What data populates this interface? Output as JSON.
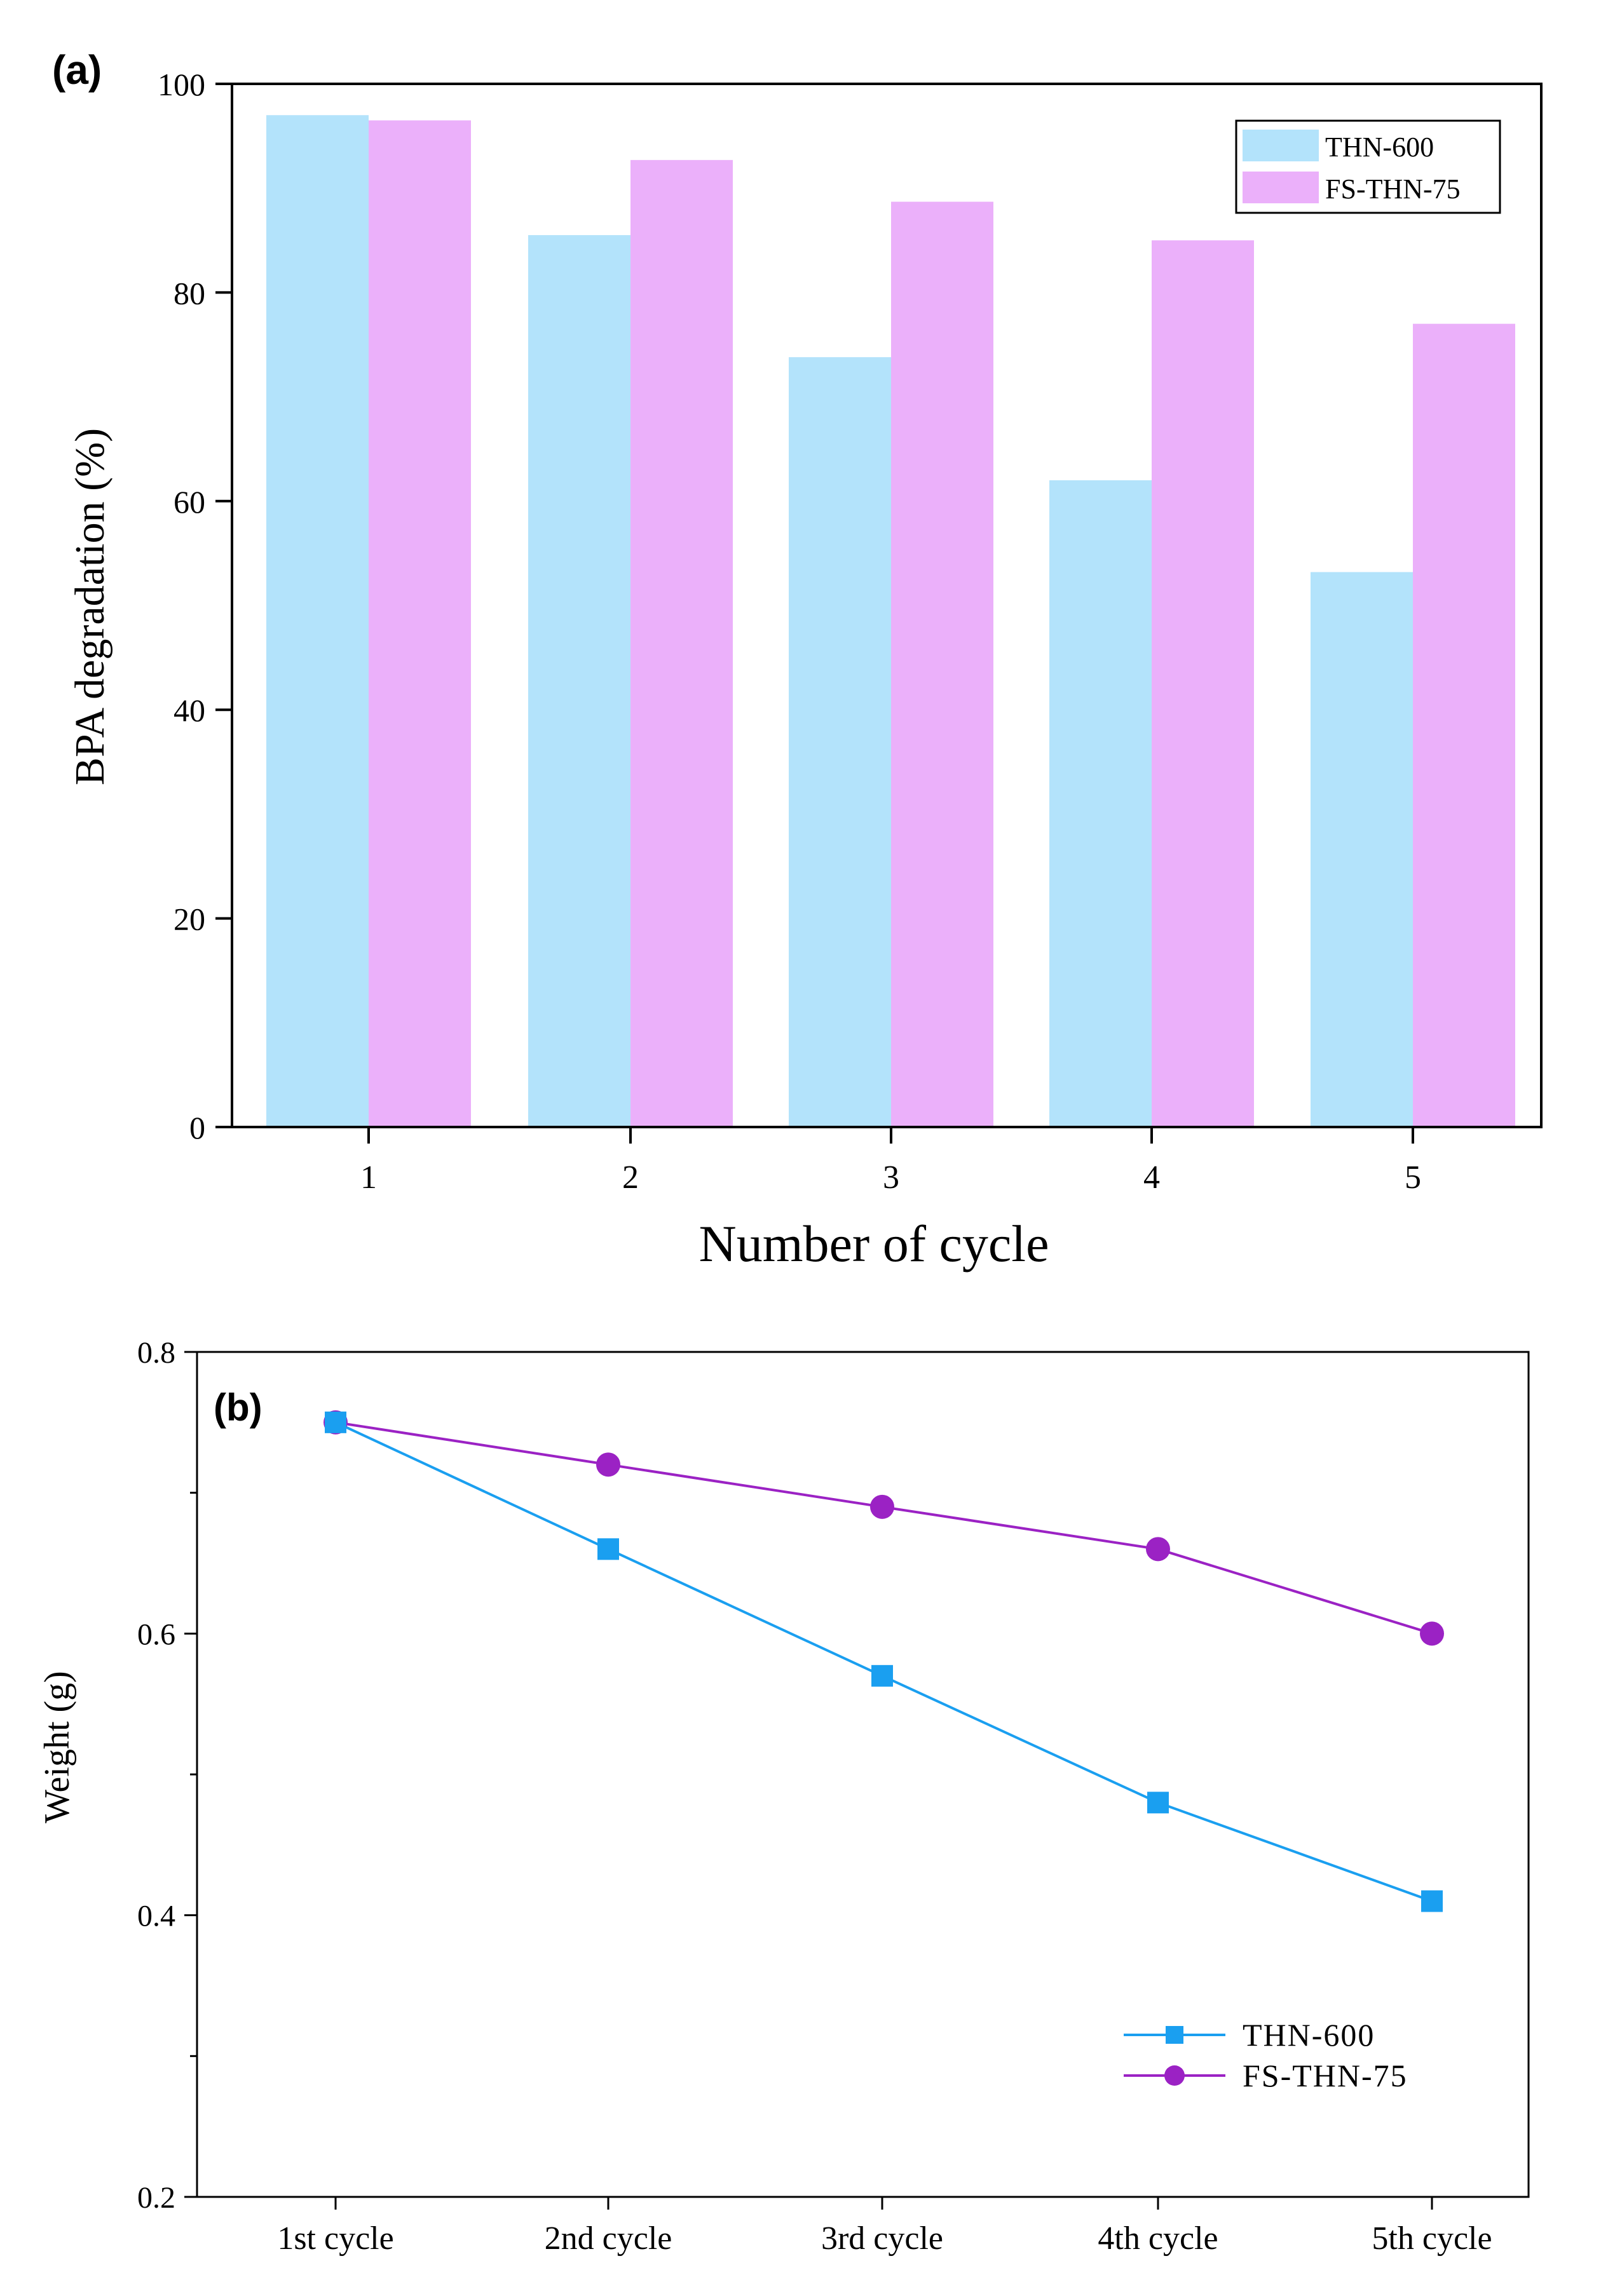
{
  "chart_data": [
    {
      "type": "bar",
      "panel_label": "(a)",
      "categories": [
        "1",
        "2",
        "3",
        "4",
        "5"
      ],
      "series": [
        {
          "name": "THN-600",
          "values": [
            97,
            85.5,
            73.8,
            62,
            53.2
          ],
          "color": "#b3e3fb"
        },
        {
          "name": "FS-THN-75",
          "values": [
            96.5,
            92.7,
            88.7,
            85,
            77
          ],
          "color": "#ebb0fa"
        }
      ],
      "xlabel": "Number of cycle",
      "ylabel": "BPA degradation (%)",
      "ylim": [
        0,
        100
      ],
      "yticks": [
        0,
        20,
        40,
        60,
        80,
        100
      ],
      "ytick_labels": [
        "0",
        "20",
        "40",
        "60",
        "80",
        "100"
      ],
      "grid": false,
      "legend_position": "top-right"
    },
    {
      "type": "line",
      "panel_label": "(b)",
      "categories": [
        "1st cycle",
        "2nd cycle",
        "3rd cycle",
        "4th cycle",
        "5th cycle"
      ],
      "series": [
        {
          "name": "THN-600",
          "values": [
            0.75,
            0.66,
            0.57,
            0.48,
            0.41
          ],
          "color": "#1a9ff0",
          "marker": "square"
        },
        {
          "name": "FS-THN-75",
          "values": [
            0.75,
            0.72,
            0.69,
            0.66,
            0.6
          ],
          "color": "#9b22c4",
          "marker": "circle"
        }
      ],
      "xlabel": "",
      "ylabel": "Weight (g)",
      "ylim": [
        0.2,
        0.8
      ],
      "yticks": [
        0.2,
        0.4,
        0.6,
        0.8
      ],
      "ytick_labels": [
        "0.2",
        "0.4",
        "0.6",
        "0.8"
      ],
      "grid": false,
      "legend_position": "bottom-right"
    }
  ]
}
